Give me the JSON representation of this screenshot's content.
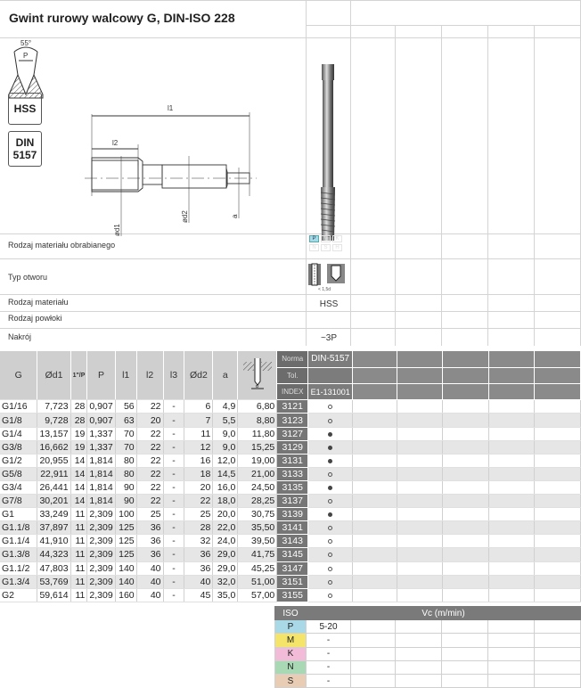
{
  "title": "Gwint rurowy walcowy G, DIN-ISO 228",
  "thread_icon": {
    "angle": "55°",
    "pitch": "P"
  },
  "badges": {
    "material": "HSS",
    "norm_line1": "DIN",
    "norm_line2": "5157"
  },
  "drawing": {
    "l1": "l1",
    "l2": "l2",
    "d1": "ød1",
    "d2": "ød2",
    "a": "a"
  },
  "properties": [
    {
      "label": "Rodzaj materiału obrabianego",
      "value": ""
    },
    {
      "label": "Typ otworu",
      "value": "",
      "note": "< 1,5d"
    },
    {
      "label": "Rodzaj materiału",
      "value": "HSS"
    },
    {
      "label": "Rodzaj powłoki",
      "value": ""
    },
    {
      "label": "Nakrój",
      "value": "~3P"
    }
  ],
  "material_groups": {
    "active": "P",
    "items": [
      "P",
      "M",
      "K",
      "N",
      "S",
      "H"
    ]
  },
  "table": {
    "headers": [
      "G",
      "Ød1",
      "1\"/P",
      "P",
      "l1",
      "l2",
      "l3",
      "Ød2",
      "a"
    ],
    "meta": {
      "norma_label": "Norma",
      "norma": "DIN-5157",
      "tol_label": "Tol.",
      "tol": "",
      "index_label": "INDEX",
      "index": "E1-131001"
    },
    "rows": [
      [
        "G1/16",
        "7,723",
        "28",
        "0,907",
        "56",
        "22",
        "-",
        "6",
        "4,9",
        "6,80",
        "3121",
        "o"
      ],
      [
        "G1/8",
        "9,728",
        "28",
        "0,907",
        "63",
        "20",
        "-",
        "7",
        "5,5",
        "8,80",
        "3123",
        "o"
      ],
      [
        "G1/4",
        "13,157",
        "19",
        "1,337",
        "70",
        "22",
        "-",
        "11",
        "9,0",
        "11,80",
        "3127",
        "●"
      ],
      [
        "G3/8",
        "16,662",
        "19",
        "1,337",
        "70",
        "22",
        "-",
        "12",
        "9,0",
        "15,25",
        "3129",
        "●"
      ],
      [
        "G1/2",
        "20,955",
        "14",
        "1,814",
        "80",
        "22",
        "-",
        "16",
        "12,0",
        "19,00",
        "3131",
        "●"
      ],
      [
        "G5/8",
        "22,911",
        "14",
        "1,814",
        "80",
        "22",
        "-",
        "18",
        "14,5",
        "21,00",
        "3133",
        "o"
      ],
      [
        "G3/4",
        "26,441",
        "14",
        "1,814",
        "90",
        "22",
        "-",
        "20",
        "16,0",
        "24,50",
        "3135",
        "●"
      ],
      [
        "G7/8",
        "30,201",
        "14",
        "1,814",
        "90",
        "22",
        "-",
        "22",
        "18,0",
        "28,25",
        "3137",
        "o"
      ],
      [
        "G1",
        "33,249",
        "11",
        "2,309",
        "100",
        "25",
        "-",
        "25",
        "20,0",
        "30,75",
        "3139",
        "●"
      ],
      [
        "G1.1/8",
        "37,897",
        "11",
        "2,309",
        "125",
        "36",
        "-",
        "28",
        "22,0",
        "35,50",
        "3141",
        "o"
      ],
      [
        "G1.1/4",
        "41,910",
        "11",
        "2,309",
        "125",
        "36",
        "-",
        "32",
        "24,0",
        "39,50",
        "3143",
        "o"
      ],
      [
        "G1.3/8",
        "44,323",
        "11",
        "2,309",
        "125",
        "36",
        "-",
        "36",
        "29,0",
        "41,75",
        "3145",
        "o"
      ],
      [
        "G1.1/2",
        "47,803",
        "11",
        "2,309",
        "140",
        "40",
        "-",
        "36",
        "29,0",
        "45,25",
        "3147",
        "o"
      ],
      [
        "G1.3/4",
        "53,769",
        "11",
        "2,309",
        "140",
        "40",
        "-",
        "40",
        "32,0",
        "51,00",
        "3151",
        "o"
      ],
      [
        "G2",
        "59,614",
        "11",
        "2,309",
        "160",
        "40",
        "-",
        "45",
        "35,0",
        "57,00",
        "3155",
        "o"
      ]
    ]
  },
  "iso": {
    "header": "ISO",
    "vc_header": "Vc (m/min)",
    "rows": [
      {
        "group": "P",
        "vc": "5-20",
        "color": "#a9d8e6"
      },
      {
        "group": "M",
        "vc": "-",
        "color": "#f4e56a"
      },
      {
        "group": "K",
        "vc": "-",
        "color": "#f2bcd8"
      },
      {
        "group": "N",
        "vc": "-",
        "color": "#a8d8b4"
      },
      {
        "group": "S",
        "vc": "-",
        "color": "#e8cdb4"
      }
    ]
  }
}
